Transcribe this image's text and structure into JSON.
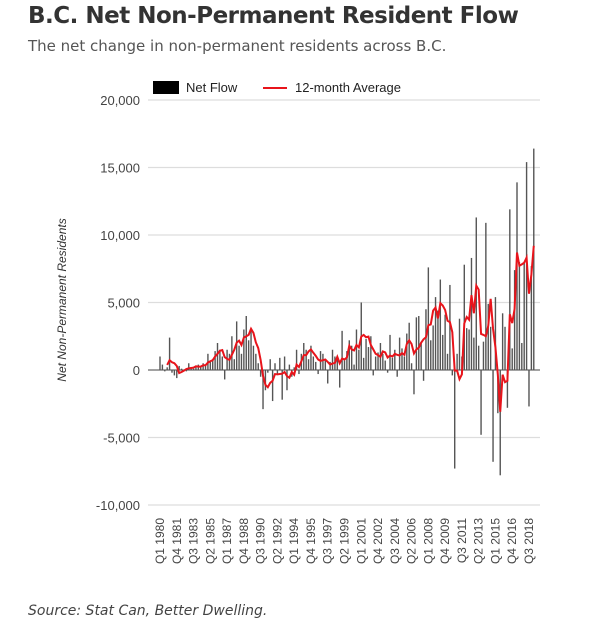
{
  "header": {
    "title": "B.C. Net Non-Permanent Resident Flow",
    "subtitle": "The net change in non-permanent residents across B.C."
  },
  "footer": {
    "source": "Source: Stat Can, Better Dwelling."
  },
  "chart_data": {
    "type": "bar",
    "ylabel": "Net Non-Permanent Residents",
    "ylim": [
      -10000,
      20000
    ],
    "yticks": [
      "20,000",
      "15,000",
      "10,000",
      "5,000",
      "0",
      "-5,000",
      "-10,000"
    ],
    "ytick_values": [
      20000,
      15000,
      10000,
      5000,
      0,
      -5000,
      -10000
    ],
    "grid": true,
    "legend_position": "top",
    "colors": {
      "bars": "#555555",
      "average": "#e8141b",
      "legend_bar": "#000000"
    },
    "xtick_labels": [
      "Q1 1980",
      "Q4 1981",
      "Q3 1983",
      "Q2 1985",
      "Q1 1987",
      "Q4 1988",
      "Q3 1990",
      "Q2 1992",
      "Q1 1994",
      "Q4 1995",
      "Q3 1997",
      "Q2 1999",
      "Q1 2001",
      "Q4 2002",
      "Q3 2004",
      "Q2 2006",
      "Q1 2008",
      "Q4 2009",
      "Q3 2011",
      "Q2 2013",
      "Q1 2015",
      "Q4 2016",
      "Q3 2018"
    ],
    "x_start": "Q1 1980",
    "series": [
      {
        "name": "Net Flow",
        "type": "bar",
        "values": [
          1000,
          400,
          -100,
          200,
          2400,
          -200,
          -400,
          -600,
          300,
          100,
          0,
          -100,
          500,
          200,
          100,
          300,
          400,
          200,
          500,
          300,
          1200,
          600,
          800,
          1400,
          2000,
          1500,
          1000,
          -700,
          1500,
          1200,
          2500,
          800,
          3600,
          1800,
          1200,
          3000,
          4000,
          2200,
          3000,
          1800,
          1200,
          500,
          -500,
          -2900,
          -1500,
          -200,
          800,
          -2300,
          500,
          -300,
          900,
          -2200,
          1000,
          -1500,
          400,
          -500,
          200,
          1500,
          -300,
          1200,
          2000,
          1500,
          800,
          1800,
          1000,
          600,
          -300,
          1400,
          1200,
          800,
          -1000,
          600,
          1500,
          1000,
          800,
          -1300,
          2900,
          700,
          1400,
          2200,
          1800,
          400,
          3000,
          1500,
          5000,
          900,
          2300,
          1700,
          2500,
          -400,
          1000,
          1300,
          2000,
          1200,
          700,
          -200,
          2600,
          900,
          1500,
          -500,
          2400,
          1600,
          1000,
          2700,
          3500,
          500,
          -1800,
          3900,
          4000,
          2000,
          -800,
          4500,
          7600,
          2200,
          3300,
          5400,
          4400,
          6700,
          2600,
          4100,
          1200,
          6300,
          -400,
          -7300,
          1200,
          3800,
          1000,
          7800,
          3100,
          3000,
          8300,
          2400,
          11300,
          1800,
          -4800,
          2100,
          10900,
          4900,
          3200,
          -6800,
          5400,
          -3200,
          -7800,
          4200,
          3200,
          -2800,
          11900,
          1600,
          7400,
          13900,
          8000,
          2000,
          7900,
          15400,
          -2700,
          7700,
          16400
        ]
      },
      {
        "name": "12-month Average",
        "type": "line",
        "window_quarters": 4
      }
    ]
  }
}
